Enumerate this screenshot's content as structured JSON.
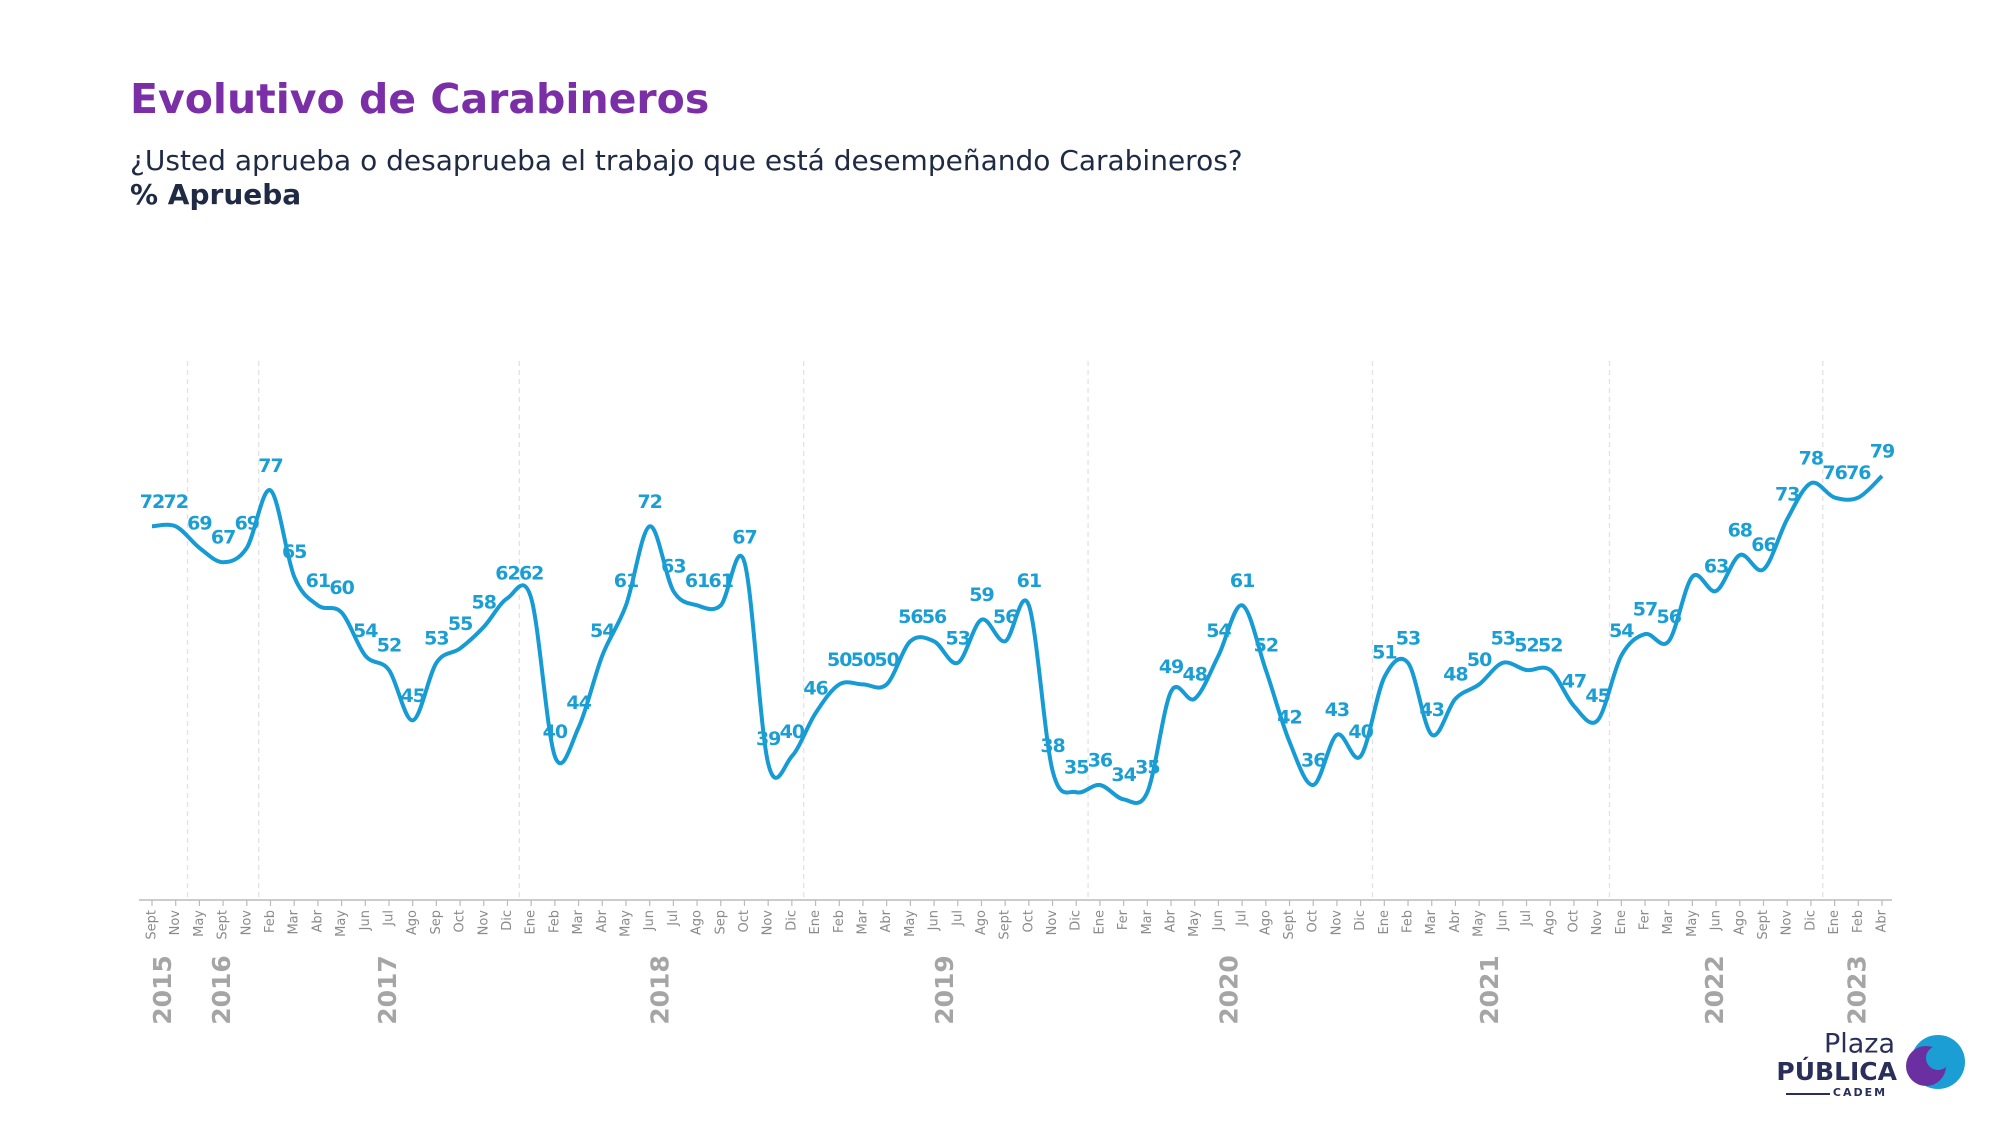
{
  "chart_data": {
    "type": "line",
    "title": "Evolutivo de Carabineros",
    "subtitle": "¿Usted aprueba o desaprueba el trabajo que está desempeñando Carabineros?",
    "y_label": "% Aprueba",
    "categories": [
      "Sept",
      "Nov",
      "May",
      "Sept",
      "Nov",
      "Feb",
      "Mar",
      "Abr",
      "May",
      "Jun",
      "Jul",
      "Ago",
      "Sep",
      "Oct",
      "Nov",
      "Dic",
      "Ene",
      "Feb",
      "Mar",
      "Abr",
      "May",
      "Jun",
      "Jul",
      "Ago",
      "Sep",
      "Oct",
      "Nov",
      "Dic",
      "Ene",
      "Feb",
      "Mar",
      "Abr",
      "May",
      "Jun",
      "Jul",
      "Ago",
      "Sept",
      "Oct",
      "Nov",
      "Dic",
      "Ene",
      "Fer",
      "Mar",
      "Abr",
      "May",
      "Jun",
      "Jul",
      "Ago",
      "Sept",
      "Oct",
      "Nov",
      "Dic",
      "Ene",
      "Feb",
      "Mar",
      "Abr",
      "May",
      "Jun",
      "Jul",
      "Ago",
      "Oct",
      "Nov",
      "Ene",
      "Fer",
      "Mar",
      "May",
      "Jun",
      "Ago",
      "Sept",
      "Nov",
      "Dic",
      "Ene",
      "Feb",
      "Abr"
    ],
    "years": [
      {
        "label": "2015",
        "from": 0,
        "to": 1
      },
      {
        "label": "2016",
        "from": 2,
        "to": 4
      },
      {
        "label": "2017",
        "from": 5,
        "to": 15
      },
      {
        "label": "2018",
        "from": 16,
        "to": 27
      },
      {
        "label": "2019",
        "from": 28,
        "to": 39
      },
      {
        "label": "2020",
        "from": 40,
        "to": 51
      },
      {
        "label": "2021",
        "from": 52,
        "to": 61
      },
      {
        "label": "2022",
        "from": 62,
        "to": 70
      },
      {
        "label": "2023",
        "from": 71,
        "to": 73
      }
    ],
    "values": [
      72,
      72,
      69,
      67,
      69,
      77,
      65,
      61,
      60,
      54,
      52,
      45,
      53,
      55,
      58,
      62,
      62,
      40,
      44,
      54,
      61,
      72,
      63,
      61,
      61,
      67,
      39,
      40,
      46,
      50,
      50,
      50,
      56,
      56,
      53,
      59,
      56,
      61,
      38,
      35,
      36,
      34,
      35,
      49,
      48,
      54,
      61,
      52,
      42,
      36,
      43,
      40,
      51,
      53,
      43,
      48,
      50,
      53,
      52,
      52,
      47,
      45,
      54,
      57,
      56,
      65,
      63,
      68,
      66,
      73,
      78,
      76,
      76,
      79
    ],
    "value_labels": [
      "72",
      "72",
      "69",
      "67",
      "69",
      "77",
      "65",
      "61",
      "60",
      "54",
      "52",
      "45",
      "53",
      "55",
      "58",
      "62",
      "62",
      "40",
      "44",
      "54",
      "61",
      "72",
      "63",
      "61",
      "61",
      "67",
      "39",
      "40",
      "46",
      "50",
      "50",
      "50",
      "56",
      "56",
      "53",
      "59",
      "56",
      "61",
      "38",
      "35",
      "36",
      "34",
      "35",
      "49",
      "48",
      "54",
      "61",
      "52",
      "42",
      "36",
      "43",
      "40",
      "51",
      "53",
      "43",
      "48",
      "50",
      "53",
      "52",
      "52",
      "47",
      "45",
      "54",
      "57",
      "56",
      null,
      "63",
      "68",
      "66",
      "73",
      "78",
      "76",
      "76",
      "79"
    ],
    "color": "#169bd5",
    "ylim": [
      20,
      95
    ],
    "logo": {
      "top": "Plaza",
      "main": "PÚBLICA",
      "bottom": "CADEM"
    }
  }
}
